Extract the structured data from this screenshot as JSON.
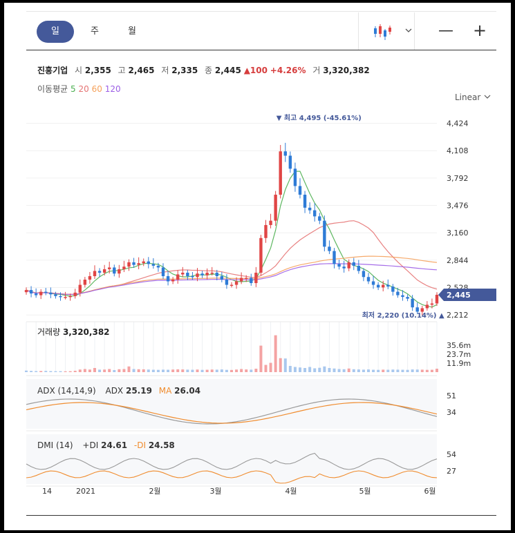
{
  "toolbar": {
    "tabs": [
      {
        "label": "일",
        "active": true
      },
      {
        "label": "주",
        "active": false
      },
      {
        "label": "월",
        "active": false
      }
    ],
    "chart_type_icon": "candlestick-icon",
    "dropdown_icon": "chevron-down-icon",
    "zoom_out_icon": "minus-icon",
    "zoom_in_icon": "plus-icon"
  },
  "quote": {
    "name": "진흥기업",
    "open_label": "시",
    "open": "2,355",
    "high_label": "고",
    "high": "2,465",
    "low_label": "저",
    "low": "2,335",
    "close_label": "종",
    "close": "2,445",
    "change": "▲100",
    "change_pct": "+4.26%",
    "volume_label": "거",
    "volume": "3,320,382"
  },
  "moving_average": {
    "label": "이동평균",
    "periods": [
      "5",
      "20",
      "60",
      "120"
    ],
    "colors": [
      "#4caf50",
      "#e57373",
      "#f5a05a",
      "#9b5de5"
    ]
  },
  "scale_mode": "Linear",
  "colors": {
    "up": "#e04545",
    "down": "#2e7bd6",
    "accent": "#44599a"
  },
  "chart_data": {
    "type": "candlestick",
    "y_ticks": [
      "4,424",
      "4,108",
      "3,792",
      "3,476",
      "3,160",
      "2,844",
      "2,528",
      "2,212"
    ],
    "ylim": [
      2150,
      4540
    ],
    "current_price_label": "2,445",
    "high_annotation": "▼ 최고 4,495 (-45.61%)",
    "low_annotation": "최저 2,220 (10.14%) ▲",
    "x_ticks": [
      "14",
      "2021",
      "2월",
      "3월",
      "4월",
      "5월",
      "6월"
    ],
    "price_close": [
      2500,
      2460,
      2440,
      2480,
      2470,
      2450,
      2430,
      2420,
      2420,
      2430,
      2470,
      2560,
      2620,
      2660,
      2720,
      2700,
      2740,
      2760,
      2690,
      2740,
      2770,
      2820,
      2790,
      2810,
      2830,
      2800,
      2780,
      2760,
      2660,
      2600,
      2620,
      2680,
      2700,
      2660,
      2650,
      2690,
      2670,
      2700,
      2700,
      2660,
      2620,
      2560,
      2560,
      2600,
      2640,
      2640,
      2580,
      2700,
      3100,
      3250,
      3300,
      3600,
      4100,
      4050,
      3900,
      3700,
      3600,
      3450,
      3420,
      3350,
      3300,
      3000,
      2950,
      2800,
      2770,
      2750,
      2820,
      2780,
      2720,
      2650,
      2600,
      2560,
      2530,
      2560,
      2540,
      2480,
      2440,
      2420,
      2400,
      2300,
      2250,
      2290,
      2330,
      2345,
      2445
    ],
    "volume": {
      "ticks": [
        "35.6m",
        "23.7m",
        "11.9m"
      ],
      "values_m": [
        1.5,
        1.2,
        1,
        1.1,
        1.2,
        1,
        0.9,
        0.9,
        0.8,
        0.9,
        1.3,
        2.5,
        3,
        2.5,
        4,
        2.4,
        2.5,
        3,
        2,
        2.8,
        3,
        5.5,
        3,
        2.8,
        2.7,
        2.5,
        2.3,
        2.2,
        2.4,
        2.3,
        2.5,
        2.7,
        2.6,
        2.4,
        2.3,
        2.5,
        2.2,
        2.3,
        2.5,
        2.4,
        2.6,
        2.2,
        2.1,
        2.5,
        3,
        2.6,
        2.4,
        3.3,
        25.6,
        7,
        9,
        35.6,
        13.5,
        13.2,
        6,
        5,
        4.5,
        4,
        5,
        3.7,
        4.2,
        5.5,
        4,
        3.5,
        3,
        2.8,
        3.5,
        2.8,
        2.6,
        2.4,
        2.6,
        2.3,
        2.2,
        2.4,
        2.3,
        2.5,
        2.4,
        2.3,
        2.2,
        2.6,
        2.5,
        2.4,
        2.2,
        2.3,
        3.3
      ]
    },
    "adx": {
      "label": "ADX (14,14,9)",
      "adx_label": "ADX",
      "adx_value": "25.19",
      "ma_label": "MA",
      "ma_value": "26.04",
      "ticks": [
        "51",
        "34"
      ]
    },
    "dmi": {
      "label": "DMI (14)",
      "plus_label": "+DI",
      "plus_value": "24.61",
      "minus_label": "-DI",
      "minus_value": "24.58",
      "ticks": [
        "54",
        "27"
      ]
    }
  }
}
